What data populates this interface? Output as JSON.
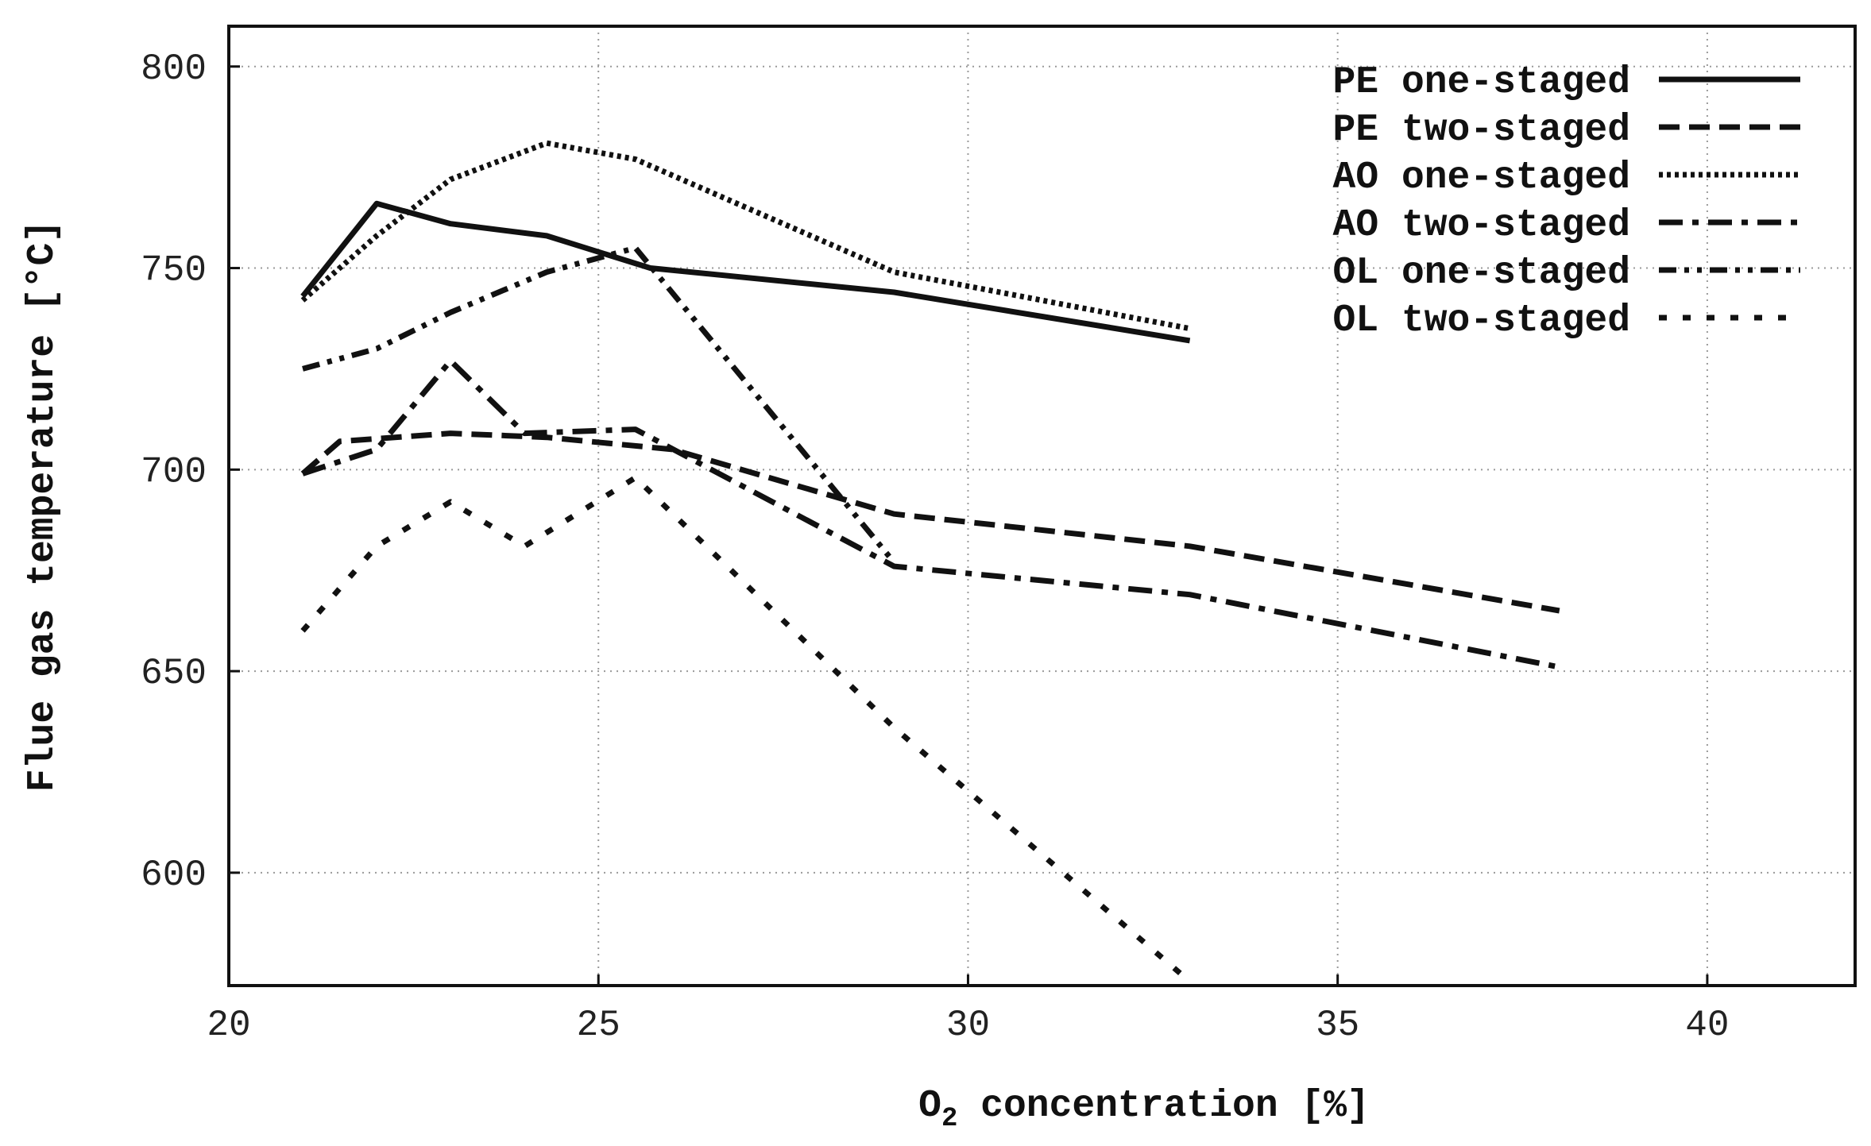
{
  "chart_data": {
    "type": "line",
    "title": "",
    "xlabel": "concentration [%]",
    "xlabel_symbol": "O",
    "xlabel_subscript": "2",
    "ylabel": "Flue gas temperature [°C]",
    "xlim": [
      20,
      42
    ],
    "ylim": [
      572,
      810
    ],
    "xticks": [
      20,
      25,
      30,
      35,
      40
    ],
    "yticks": [
      600,
      650,
      700,
      750,
      800
    ],
    "grid": true,
    "legend_position": "top-right",
    "series": [
      {
        "name": "PE one-staged",
        "style": "solid",
        "x": [
          21,
          22,
          23,
          24.3,
          25.7,
          29,
          33
        ],
        "y": [
          743,
          766,
          761,
          758,
          750,
          744,
          732
        ]
      },
      {
        "name": "PE two-staged",
        "style": "dashed",
        "x": [
          21,
          21.5,
          23,
          24.3,
          26,
          29,
          33,
          38
        ],
        "y": [
          699,
          707,
          709,
          708,
          705,
          689,
          681,
          665
        ]
      },
      {
        "name": "AO one-staged",
        "style": "dotted",
        "x": [
          21,
          22,
          23,
          24.3,
          25.5,
          29,
          33
        ],
        "y": [
          742,
          758,
          772,
          781,
          777,
          749,
          735
        ]
      },
      {
        "name": "AO two-staged",
        "style": "dash-dot",
        "x": [
          21,
          22,
          23,
          24,
          25.5,
          29,
          33,
          38
        ],
        "y": [
          699,
          705,
          727,
          709,
          710,
          676,
          669,
          651
        ]
      },
      {
        "name": "OL one-staged",
        "style": "dash-dot-dot",
        "x": [
          21,
          22,
          23,
          24.3,
          25.5,
          29
        ],
        "y": [
          725,
          730,
          739,
          749,
          755,
          677
        ]
      },
      {
        "name": "OL two-staged",
        "style": "sparse-dotted",
        "x": [
          21,
          22,
          23,
          24,
          25.5,
          29,
          33
        ],
        "y": [
          660,
          681,
          692,
          681,
          698,
          636,
          573
        ]
      }
    ]
  }
}
